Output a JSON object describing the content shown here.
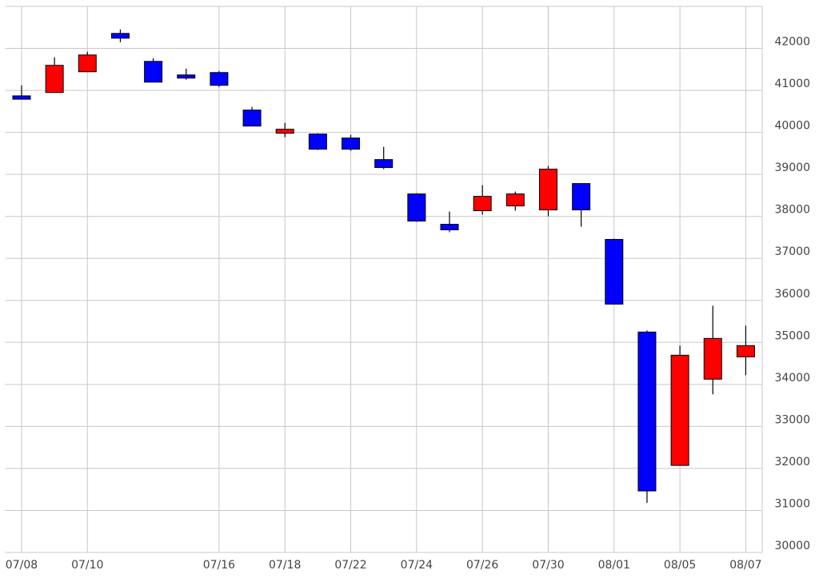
{
  "chart_data": {
    "type": "candlestick",
    "categories": [
      "07/08",
      null,
      "07/10",
      null,
      null,
      null,
      "07/16",
      null,
      "07/18",
      null,
      "07/22",
      null,
      "07/24",
      null,
      "07/26",
      null,
      "07/30",
      null,
      "08/01",
      null,
      "08/05",
      null,
      "08/07"
    ],
    "open": [
      40870,
      40950,
      41444,
      42357,
      41691,
      41368,
      41425,
      40532,
      39980,
      39961,
      39866,
      39353,
      38535,
      37813,
      38136,
      38250,
      38155,
      38782,
      37452,
      35247,
      32072,
      34125,
      34657
    ],
    "high": [
      41120,
      41787,
      41919,
      42452,
      41767,
      41520,
      41463,
      40608,
      40227,
      39980,
      39942,
      39657,
      38554,
      38117,
      38744,
      38592,
      39201,
      38782,
      37471,
      35285,
      34924,
      35874,
      35399
    ],
    "low": [
      40780,
      40950,
      41444,
      42147,
      41197,
      41254,
      41083,
      40151,
      39885,
      39581,
      39562,
      39125,
      37870,
      37623,
      38041,
      38136,
      38003,
      37756,
      35912,
      31178,
      32072,
      33764,
      34220
    ],
    "close": [
      40790,
      41597,
      41843,
      42243,
      41197,
      41293,
      41121,
      40151,
      40075,
      39600,
      39600,
      39163,
      37889,
      37680,
      38478,
      38535,
      39125,
      38155,
      35912,
      31464,
      34695,
      35095,
      34924
    ],
    "up_color": "#ff0000",
    "down_color": "#0000ff",
    "ylim": [
      30000,
      43000
    ],
    "yticks": [
      30000,
      31000,
      32000,
      33000,
      34000,
      35000,
      36000,
      37000,
      38000,
      39000,
      40000,
      41000,
      42000
    ],
    "grid": true
  }
}
